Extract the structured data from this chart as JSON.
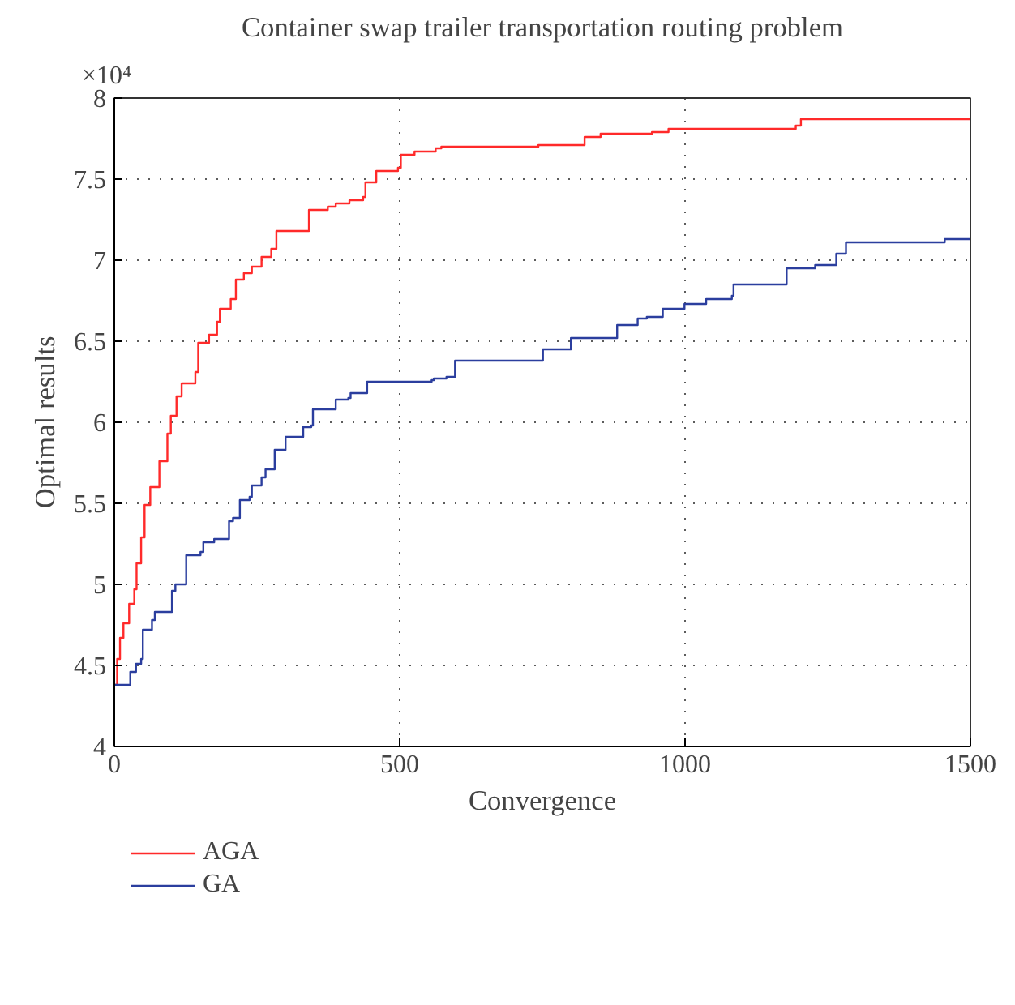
{
  "chart_data": {
    "type": "step",
    "title": "Container swap trailer transportation routing problem",
    "xlabel": "Convergence",
    "ylabel": "Optimal results",
    "annotations": [
      "×10⁴"
    ],
    "xlim": [
      0,
      1500
    ],
    "xticks": [
      0,
      500,
      1000,
      1500
    ],
    "ylim": [
      4,
      8
    ],
    "yticks": [
      4,
      4.5,
      5,
      5.5,
      6,
      6.5,
      7,
      7.5,
      8
    ],
    "grid": true,
    "legend": "bottom",
    "line_style": "solid",
    "series": [
      {
        "name": "AGA",
        "color": "#ff2a2a",
        "x": [
          0,
          5,
          10,
          16,
          26,
          35,
          39,
          47,
          53,
          63,
          79,
          93,
          99,
          109,
          118,
          142,
          147,
          166,
          180,
          185,
          204,
          213,
          227,
          241,
          258,
          275,
          284,
          341,
          374,
          388,
          412,
          436,
          440,
          459,
          497,
          502,
          526,
          563,
          573,
          743,
          824,
          852,
          942,
          971,
          1194,
          1203,
          1500
        ],
        "values": [
          4.38,
          4.54,
          4.67,
          4.76,
          4.88,
          4.97,
          5.13,
          5.29,
          5.49,
          5.6,
          5.76,
          5.93,
          6.04,
          6.16,
          6.24,
          6.31,
          6.49,
          6.54,
          6.62,
          6.7,
          6.76,
          6.88,
          6.92,
          6.96,
          7.02,
          7.07,
          7.18,
          7.31,
          7.33,
          7.35,
          7.37,
          7.39,
          7.48,
          7.55,
          7.57,
          7.65,
          7.67,
          7.69,
          7.7,
          7.71,
          7.76,
          7.78,
          7.79,
          7.81,
          7.83,
          7.87,
          7.88
        ]
      },
      {
        "name": "GA",
        "color": "#2b3e9e",
        "x": [
          0,
          28,
          38,
          47,
          50,
          66,
          71,
          101,
          107,
          126,
          151,
          156,
          175,
          201,
          208,
          220,
          237,
          241,
          258,
          265,
          281,
          300,
          331,
          345,
          348,
          388,
          410,
          414,
          443,
          556,
          560,
          582,
          597,
          751,
          800,
          881,
          917,
          933,
          961,
          999,
          1037,
          1082,
          1085,
          1178,
          1228,
          1265,
          1282,
          1455,
          1500
        ],
        "values": [
          4.38,
          4.46,
          4.51,
          4.54,
          4.72,
          4.78,
          4.83,
          4.96,
          5.0,
          5.18,
          5.2,
          5.26,
          5.28,
          5.39,
          5.41,
          5.52,
          5.54,
          5.61,
          5.66,
          5.71,
          5.83,
          5.91,
          5.97,
          5.98,
          6.08,
          6.14,
          6.15,
          6.18,
          6.25,
          6.26,
          6.27,
          6.28,
          6.38,
          6.45,
          6.52,
          6.6,
          6.64,
          6.65,
          6.7,
          6.73,
          6.76,
          6.78,
          6.85,
          6.95,
          6.97,
          7.04,
          7.11,
          7.13,
          7.13
        ]
      }
    ]
  }
}
